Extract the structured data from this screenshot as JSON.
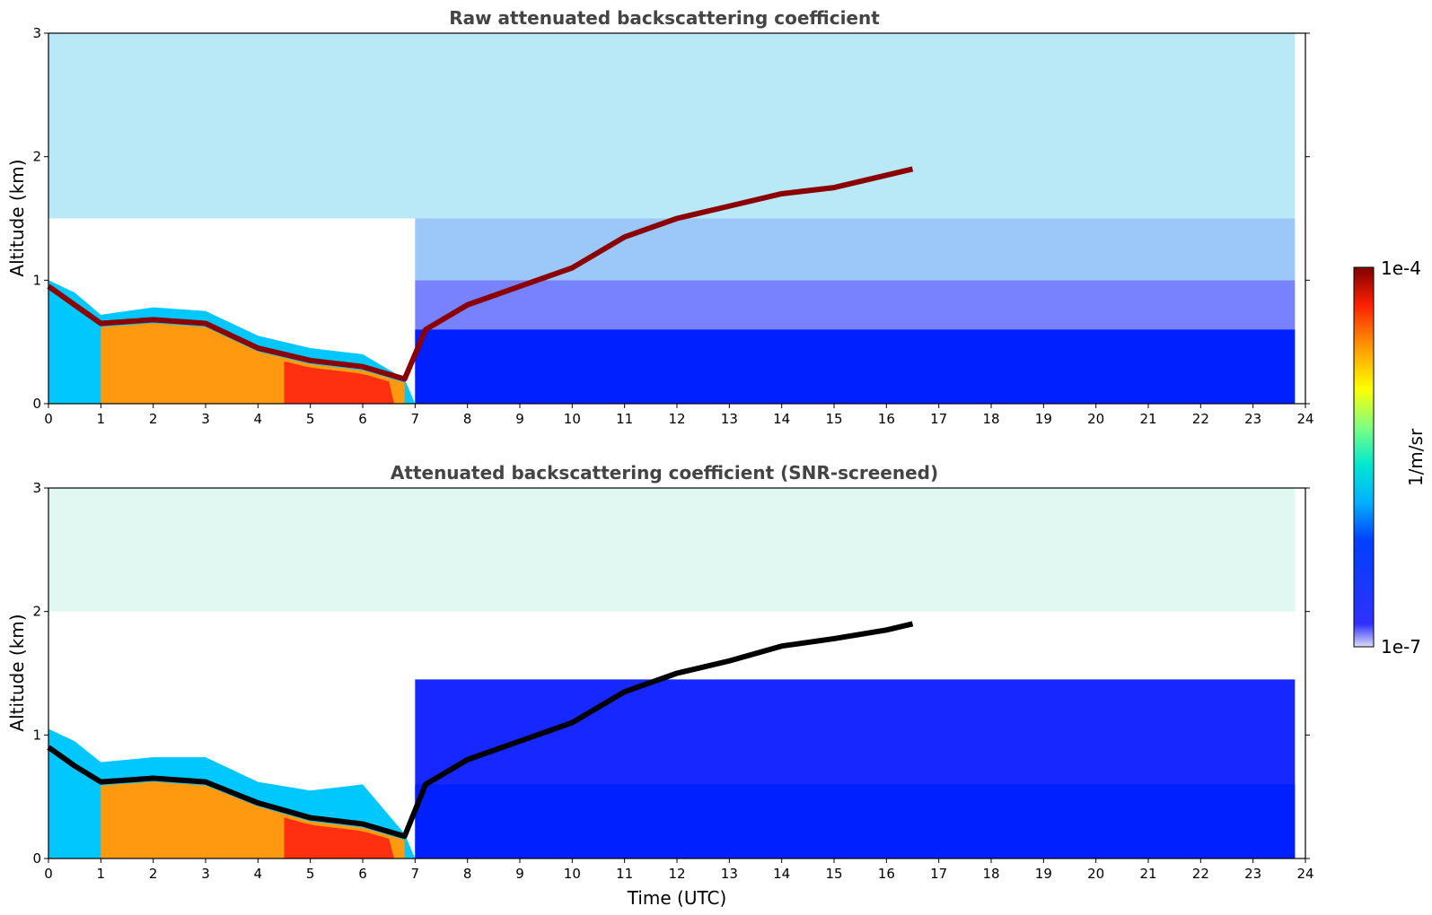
{
  "chart_data": [
    {
      "type": "heatmap",
      "title": "Raw attenuated backscattering coefficient",
      "xlabel": "",
      "ylabel": "Altitude (km)",
      "xlim": [
        0,
        24
      ],
      "ylim": [
        0,
        3
      ],
      "x_ticks": [
        "0",
        "1",
        "2",
        "3",
        "4",
        "5",
        "6",
        "7",
        "8",
        "9",
        "10",
        "11",
        "12",
        "13",
        "14",
        "15",
        "16",
        "17",
        "18",
        "19",
        "20",
        "21",
        "22",
        "23",
        "24"
      ],
      "y_ticks": [
        "0",
        "1",
        "2",
        "3"
      ],
      "layer_top_km": {
        "time_utc": [
          0,
          0.5,
          1,
          2,
          3,
          4,
          5,
          6,
          6.8,
          7.2,
          8,
          9,
          10,
          11,
          12,
          13,
          14,
          15,
          16,
          16.5
        ],
        "altitude_km": [
          0.95,
          0.8,
          0.65,
          0.68,
          0.65,
          0.45,
          0.35,
          0.3,
          0.2,
          0.6,
          0.8,
          0.95,
          1.1,
          1.35,
          1.5,
          1.6,
          1.7,
          1.75,
          1.85,
          1.9
        ]
      },
      "boundary_layer_top_km": {
        "time_utc": [
          0,
          0.5,
          1,
          2,
          3,
          4,
          5,
          6,
          6.8
        ],
        "altitude_km": [
          1.0,
          0.9,
          0.72,
          0.78,
          0.75,
          0.55,
          0.45,
          0.4,
          0.2
        ]
      },
      "colorbar": {
        "label": "1/m/sr",
        "min": "1e-7",
        "max": "1e-4",
        "scale": "log"
      }
    },
    {
      "type": "heatmap",
      "title": "Attenuated backscattering coefficient (SNR-screened)",
      "xlabel": "Time (UTC)",
      "ylabel": "Altitude (km)",
      "xlim": [
        0,
        24
      ],
      "ylim": [
        0,
        3
      ],
      "x_ticks": [
        "0",
        "1",
        "2",
        "3",
        "4",
        "5",
        "6",
        "7",
        "8",
        "9",
        "10",
        "11",
        "12",
        "13",
        "14",
        "15",
        "16",
        "17",
        "18",
        "19",
        "20",
        "21",
        "22",
        "23",
        "24"
      ],
      "y_ticks": [
        "0",
        "1",
        "2",
        "3"
      ],
      "layer_top_km": {
        "time_utc": [
          0,
          0.5,
          1,
          2,
          3,
          4,
          5,
          6,
          6.8,
          7.2,
          8,
          9,
          10,
          11,
          12,
          13,
          14,
          15,
          16,
          16.5
        ],
        "altitude_km": [
          0.9,
          0.75,
          0.62,
          0.65,
          0.62,
          0.45,
          0.33,
          0.28,
          0.18,
          0.6,
          0.8,
          0.95,
          1.1,
          1.35,
          1.5,
          1.6,
          1.72,
          1.78,
          1.85,
          1.9
        ]
      },
      "boundary_layer_top_km": {
        "time_utc": [
          0,
          0.5,
          1,
          2,
          3,
          4,
          5,
          6,
          6.8
        ],
        "altitude_km": [
          1.05,
          0.95,
          0.78,
          0.82,
          0.82,
          0.62,
          0.55,
          0.6,
          0.2
        ]
      },
      "colorbar": {
        "label": "1/m/sr",
        "min": "1e-7",
        "max": "1e-4",
        "scale": "log"
      }
    }
  ],
  "colors": {
    "colormap": [
      "#e6e6f8",
      "#0000ff",
      "#00a0ff",
      "#00e0e0",
      "#80ff80",
      "#ffff00",
      "#ffa000",
      "#ff2000",
      "#800000"
    ],
    "layer": "#000000",
    "title": "#444444"
  }
}
